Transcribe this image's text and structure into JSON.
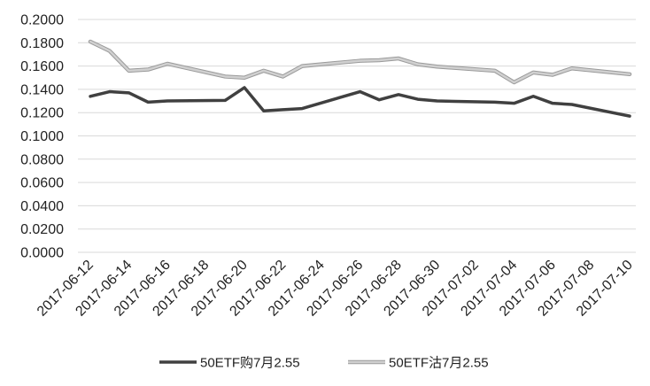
{
  "chart_data": {
    "type": "line",
    "title": "",
    "xlabel": "",
    "ylabel": "",
    "ylim": [
      0,
      0.2
    ],
    "y_ticks": [
      "0.0000",
      "0.0200",
      "0.0400",
      "0.0600",
      "0.0800",
      "0.1000",
      "0.1200",
      "0.1400",
      "0.1600",
      "0.1800",
      "0.2000"
    ],
    "x_tick_labels": [
      "2017-06-12",
      "2017-06-14",
      "2017-06-16",
      "2017-06-18",
      "2017-06-20",
      "2017-06-22",
      "2017-06-24",
      "2017-06-26",
      "2017-06-28",
      "2017-06-30",
      "2017-07-02",
      "2017-07-04",
      "2017-07-06",
      "2017-07-08",
      "2017-07-10"
    ],
    "grid": true,
    "legend_position": "bottom",
    "x": [
      "2017-06-12",
      "2017-06-13",
      "2017-06-14",
      "2017-06-15",
      "2017-06-16",
      "2017-06-19",
      "2017-06-20",
      "2017-06-21",
      "2017-06-22",
      "2017-06-23",
      "2017-06-26",
      "2017-06-27",
      "2017-06-28",
      "2017-06-29",
      "2017-06-30",
      "2017-07-03",
      "2017-07-04",
      "2017-07-05",
      "2017-07-06",
      "2017-07-07",
      "2017-07-10"
    ],
    "series": [
      {
        "name": "50ETF购7月2.55",
        "color": "#404040",
        "values": [
          0.134,
          0.138,
          0.137,
          0.129,
          0.13,
          0.1305,
          0.1415,
          0.1215,
          0.1225,
          0.1235,
          0.138,
          0.131,
          0.1355,
          0.1315,
          0.13,
          0.129,
          0.128,
          0.134,
          0.128,
          0.127,
          0.117
        ]
      },
      {
        "name": "50ETF沽7月2.55",
        "color": "#d0d0d0",
        "values": [
          0.181,
          0.173,
          0.156,
          0.157,
          0.162,
          0.151,
          0.15,
          0.156,
          0.151,
          0.16,
          0.1645,
          0.165,
          0.1665,
          0.1615,
          0.1595,
          0.156,
          0.146,
          0.1545,
          0.1525,
          0.158,
          0.153
        ]
      }
    ]
  }
}
